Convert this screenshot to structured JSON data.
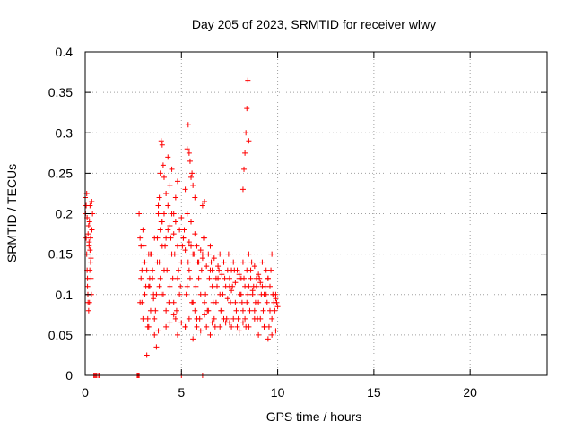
{
  "chart_data": {
    "type": "scatter",
    "title": "Day 205 of 2023, SRMTID for receiver wlwy",
    "xlabel": "GPS time / hours",
    "ylabel": "SRMTID / TECUs",
    "xlim": [
      0,
      24
    ],
    "ylim": [
      0,
      0.4
    ],
    "x_ticks": [
      0,
      5,
      10,
      15,
      20
    ],
    "x_tick_labels": [
      "0",
      "5",
      "10",
      "15",
      "20"
    ],
    "y_ticks": [
      0,
      0.05,
      0.1,
      0.15,
      0.2,
      0.25,
      0.3,
      0.35,
      0.4
    ],
    "y_tick_labels": [
      "0",
      "0.05",
      "0.1",
      "0.15",
      "0.2",
      "0.25",
      "0.3",
      "0.35",
      "0.4"
    ],
    "grid": true,
    "marker": "+",
    "series": [
      {
        "name": "SRMTID",
        "color": "#ff0000",
        "x": [
          0.0,
          0.02,
          0.05,
          0.08,
          0.1,
          0.12,
          0.15,
          0.18,
          0.2,
          0.22,
          0.25,
          0.28,
          0.3,
          0.32,
          0.35,
          0.38,
          0.05,
          0.1,
          0.15,
          0.2,
          0.25,
          0.3,
          0.12,
          0.18,
          0.22,
          0.28,
          0.08,
          0.14,
          0.24,
          0.34,
          0.45,
          0.5,
          0.55,
          0.6,
          0.7,
          0.75,
          2.7,
          2.75,
          2.8,
          2.8,
          2.85,
          2.9,
          2.95,
          3.0,
          3.05,
          3.1,
          3.2,
          3.25,
          3.3,
          3.35,
          3.4,
          3.5,
          3.55,
          3.6,
          3.7,
          3.75,
          3.8,
          3.85,
          3.9,
          3.95,
          4.0,
          4.1,
          4.2,
          4.3,
          4.4,
          4.5,
          4.6,
          4.7,
          4.8,
          4.9,
          5.0,
          5.1,
          5.2,
          5.3,
          5.4,
          5.5,
          5.6,
          5.7,
          5.8,
          5.9,
          6.0,
          6.1,
          6.2,
          6.3,
          6.4,
          6.5,
          6.6,
          6.7,
          6.8,
          6.9,
          7.0,
          7.1,
          7.2,
          7.3,
          7.4,
          7.5,
          7.6,
          7.7,
          7.8,
          7.9,
          8.0,
          8.1,
          8.2,
          8.3,
          8.4,
          8.5,
          8.6,
          8.7,
          8.8,
          8.9,
          9.0,
          9.1,
          9.2,
          9.3,
          9.4,
          9.5,
          9.6,
          9.7,
          9.8,
          9.9,
          10.0,
          2.85,
          2.95,
          3.05,
          3.15,
          3.25,
          3.35,
          3.45,
          3.55,
          3.65,
          3.75,
          3.85,
          3.95,
          4.05,
          4.15,
          4.25,
          4.35,
          4.45,
          4.55,
          4.65,
          4.75,
          4.85,
          4.95,
          5.05,
          5.15,
          5.25,
          5.35,
          5.45,
          5.55,
          5.65,
          5.75,
          5.85,
          5.95,
          6.05,
          6.15,
          6.25,
          6.35,
          6.45,
          6.55,
          6.65,
          6.75,
          6.85,
          6.95,
          7.05,
          7.15,
          7.25,
          7.35,
          7.45,
          7.55,
          7.65,
          7.75,
          7.85,
          7.95,
          8.05,
          8.15,
          8.25,
          8.35,
          8.45,
          8.55,
          8.65,
          8.75,
          8.85,
          8.95,
          9.05,
          9.15,
          9.25,
          9.35,
          9.45,
          9.55,
          9.65,
          9.75,
          9.85,
          9.95,
          3.8,
          3.85,
          3.9,
          3.95,
          4.0,
          4.05,
          4.1,
          4.2,
          4.3,
          4.4,
          4.5,
          4.6,
          4.7,
          4.8,
          5.2,
          5.3,
          5.35,
          5.4,
          5.45,
          5.5,
          5.55,
          5.6,
          5.7,
          6.1,
          6.2,
          8.2,
          8.25,
          8.3,
          8.35,
          8.4,
          8.45,
          8.5,
          2.9,
          3.0,
          3.1,
          3.2,
          3.3,
          3.4,
          3.5,
          3.6,
          3.7,
          3.9,
          4.0,
          4.1,
          4.2,
          4.3,
          4.4,
          4.5,
          4.6,
          4.7,
          4.8,
          4.9,
          5.0,
          5.1,
          5.2,
          5.3,
          5.4,
          5.5,
          5.6,
          5.7,
          5.8,
          5.9,
          6.0,
          6.1,
          6.2,
          6.3,
          6.4,
          6.5,
          6.6,
          6.7,
          6.8,
          6.9,
          7.0,
          7.1,
          7.2,
          7.3,
          7.4,
          7.5,
          7.6,
          7.7,
          7.8,
          7.9,
          8.0,
          8.1,
          8.2,
          8.3,
          8.4,
          8.5,
          8.6,
          8.7,
          8.8,
          8.9,
          9.0,
          9.1,
          9.2,
          9.3,
          9.4,
          9.5,
          9.6,
          9.7,
          9.8,
          9.9,
          3.3,
          3.8,
          4.4,
          4.8,
          5.2,
          5.6,
          6.0,
          6.5,
          7.0,
          7.5,
          8.0,
          8.5,
          9.0,
          9.5,
          9.9,
          3.6,
          4.2,
          4.6,
          5.0,
          5.4,
          5.8,
          6.2,
          6.6,
          7.2,
          7.6,
          8.2,
          8.8,
          9.3,
          9.7,
          5.0,
          6.1
        ],
        "y": [
          0.22,
          0.2,
          0.17,
          0.15,
          0.13,
          0.11,
          0.09,
          0.08,
          0.16,
          0.19,
          0.21,
          0.14,
          0.12,
          0.1,
          0.18,
          0.2,
          0.21,
          0.195,
          0.175,
          0.165,
          0.155,
          0.145,
          0.12,
          0.185,
          0.09,
          0.17,
          0.225,
          0.1,
          0.13,
          0.215,
          0,
          0,
          0,
          0,
          0,
          0,
          0,
          0,
          0,
          0.2,
          0.17,
          0.12,
          0.09,
          0.07,
          0.14,
          0.1,
          0.025,
          0.06,
          0.15,
          0.11,
          0.08,
          0.13,
          0.095,
          0.05,
          0.035,
          0.17,
          0.2,
          0.14,
          0.12,
          0.1,
          0.16,
          0.13,
          0.08,
          0.18,
          0.11,
          0.15,
          0.09,
          0.07,
          0.12,
          0.1,
          0.14,
          0.17,
          0.06,
          0.11,
          0.13,
          0.16,
          0.09,
          0.08,
          0.07,
          0.12,
          0.1,
          0.15,
          0.09,
          0.06,
          0.08,
          0.13,
          0.11,
          0.07,
          0.09,
          0.12,
          0.1,
          0.08,
          0.14,
          0.065,
          0.095,
          0.11,
          0.13,
          0.07,
          0.09,
          0.06,
          0.12,
          0.1,
          0.08,
          0.07,
          0.09,
          0.11,
          0.13,
          0.1,
          0.08,
          0.12,
          0.09,
          0.07,
          0.11,
          0.06,
          0.1,
          0.12,
          0.08,
          0.07,
          0.09,
          0.1,
          0.085,
          0.09,
          0.13,
          0.16,
          0.11,
          0.07,
          0.12,
          0.15,
          0.1,
          0.08,
          0.14,
          0.11,
          0.19,
          0.1,
          0.16,
          0.13,
          0.09,
          0.17,
          0.12,
          0.15,
          0.08,
          0.13,
          0.11,
          0.16,
          0.18,
          0.1,
          0.14,
          0.12,
          0.09,
          0.15,
          0.11,
          0.14,
          0.07,
          0.13,
          0.17,
          0.1,
          0.08,
          0.12,
          0.14,
          0.09,
          0.06,
          0.11,
          0.13,
          0.08,
          0.1,
          0.12,
          0.07,
          0.15,
          0.09,
          0.11,
          0.13,
          0.08,
          0.07,
          0.1,
          0.09,
          0.12,
          0.06,
          0.1,
          0.08,
          0.14,
          0.11,
          0.09,
          0.07,
          0.12,
          0.1,
          0.08,
          0.11,
          0.09,
          0.06,
          0.13,
          0.1,
          0.08,
          0.09,
          0.21,
          0.22,
          0.25,
          0.29,
          0.285,
          0.26,
          0.245,
          0.225,
          0.27,
          0.235,
          0.255,
          0.2,
          0.22,
          0.24,
          0.23,
          0.28,
          0.31,
          0.275,
          0.265,
          0.245,
          0.25,
          0.235,
          0.22,
          0.21,
          0.215,
          0.23,
          0.255,
          0.275,
          0.3,
          0.33,
          0.365,
          0.29,
          0.16,
          0.18,
          0.14,
          0.13,
          0.11,
          0.15,
          0.12,
          0.17,
          0.1,
          0.18,
          0.19,
          0.2,
          0.17,
          0.21,
          0.185,
          0.2,
          0.175,
          0.19,
          0.16,
          0.18,
          0.195,
          0.17,
          0.155,
          0.2,
          0.165,
          0.19,
          0.15,
          0.175,
          0.16,
          0.14,
          0.155,
          0.145,
          0.17,
          0.135,
          0.15,
          0.16,
          0.13,
          0.145,
          0.12,
          0.135,
          0.15,
          0.125,
          0.14,
          0.11,
          0.13,
          0.12,
          0.105,
          0.14,
          0.115,
          0.13,
          0.125,
          0.12,
          0.14,
          0.11,
          0.13,
          0.15,
          0.12,
          0.105,
          0.135,
          0.11,
          0.125,
          0.115,
          0.14,
          0.1,
          0.13,
          0.12,
          0.11,
          0.15,
          0.1,
          0.095,
          0.06,
          0.055,
          0.065,
          0.05,
          0.06,
          0.045,
          0.055,
          0.05,
          0.06,
          0.065,
          0.055,
          0.06,
          0.05,
          0.045,
          0.055,
          0.07,
          0.06,
          0.075,
          0.065,
          0.07,
          0.06,
          0.075,
          0.065,
          0.07,
          0.06,
          0.065,
          0.07,
          0.06,
          0.05,
          0,
          0
        ]
      }
    ]
  }
}
